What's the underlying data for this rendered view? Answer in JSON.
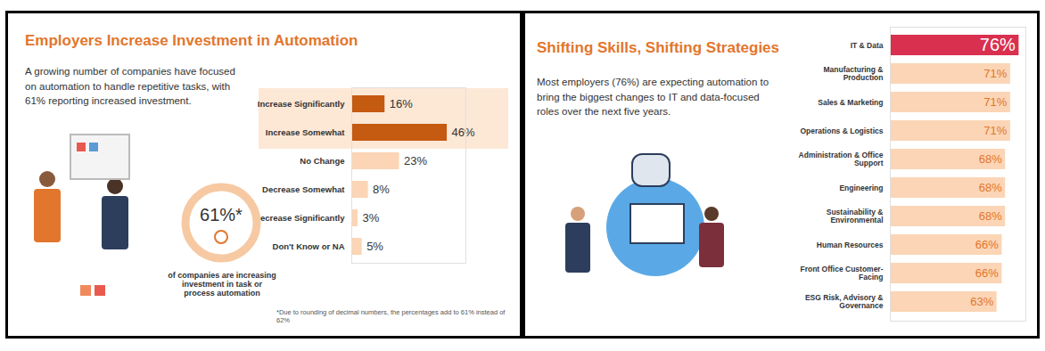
{
  "chart_data": [
    {
      "type": "bar",
      "orientation": "horizontal",
      "title": "Employers Increase Investment in Automation",
      "subtitle": "A growing number of companies have focused on automation to handle repetitive tasks, with 61% reporting increased investment.",
      "annotations": [
        "61%*",
        "of companies are increasing investment in task or process automation",
        "*Due to rounding of decimal numbers, the percentages add to 61% instead of 62%"
      ],
      "categories": [
        "Increase Significantly",
        "Increase Somewhat",
        "No Change",
        "Decrease Somewhat",
        "Decrease Significantly",
        "Don't Know or NA"
      ],
      "values": [
        16,
        46,
        23,
        8,
        3,
        5
      ],
      "value_labels": [
        "16%",
        "46%",
        "23%",
        "8%",
        "3%",
        "5%"
      ],
      "colors": [
        "#c55a11",
        "#c55a11",
        "#fbd5b5",
        "#fbd5b5",
        "#fbd5b5",
        "#fbd5b5"
      ],
      "xlim": [
        0,
        55
      ],
      "tick_labels": "y",
      "data_labels": true
    },
    {
      "type": "bar",
      "orientation": "horizontal",
      "title": "Shifting Skills, Shifting Strategies",
      "subtitle": "Most employers (76%) are expecting automation to bring the biggest changes to IT and data-focused roles over the next five years.",
      "categories": [
        "IT & Data",
        "Manufacturing & Production",
        "Sales & Marketing",
        "Operations & Logistics",
        "Administration & Office Support",
        "Engineering",
        "Sustainability & Environmental",
        "Human Resources",
        "Front Office Customer-Facing",
        "ESG Risk, Advisory & Governance"
      ],
      "values": [
        76,
        71,
        71,
        71,
        68,
        68,
        68,
        66,
        66,
        63
      ],
      "value_labels": [
        "76%",
        "71%",
        "71%",
        "71%",
        "68%",
        "68%",
        "68%",
        "66%",
        "66%",
        "63%"
      ],
      "colors": [
        "#d9304f",
        "#fbd5b5",
        "#fbd5b5",
        "#fbd5b5",
        "#fbd5b5",
        "#fbd5b5",
        "#fbd5b5",
        "#fbd5b5",
        "#fbd5b5",
        "#fbd5b5"
      ],
      "xlim": [
        0,
        80
      ],
      "tick_labels": "y",
      "data_labels": true
    }
  ]
}
